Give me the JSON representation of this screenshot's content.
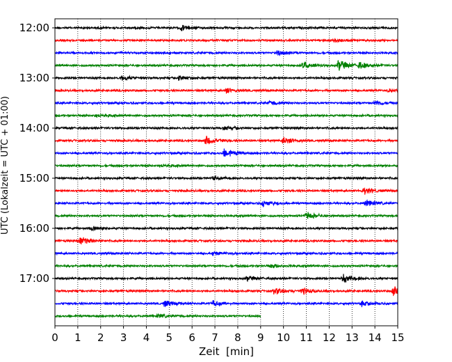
{
  "chart_data": {
    "type": "line",
    "title": "",
    "xlabel": "Zeit  [min]",
    "ylabel": "UTC (Lokalzeit = UTC + 01:00)",
    "xlim": [
      0,
      15
    ],
    "x_ticks": [
      0,
      1,
      2,
      3,
      4,
      5,
      6,
      7,
      8,
      9,
      10,
      11,
      12,
      13,
      14,
      15
    ],
    "grid": "vertical dotted",
    "row_interval_min": 15,
    "y_ticks": [
      "12:00",
      "13:00",
      "14:00",
      "15:00",
      "16:00",
      "17:00"
    ],
    "colors": [
      "#000000",
      "#ff0000",
      "#0000ff",
      "#008000"
    ],
    "traces": [
      {
        "start": "12:00",
        "color": "#000000",
        "end_min": 15,
        "events": [
          [
            5.5,
            0.5
          ]
        ]
      },
      {
        "start": "12:15",
        "color": "#ff0000",
        "end_min": 15,
        "events": [
          [
            12.2,
            0.35
          ]
        ]
      },
      {
        "start": "12:30",
        "color": "#0000ff",
        "end_min": 15,
        "events": [
          [
            9.7,
            0.45
          ]
        ]
      },
      {
        "start": "12:45",
        "color": "#008000",
        "end_min": 15,
        "events": [
          [
            10.8,
            0.7
          ],
          [
            12.4,
            1.0
          ],
          [
            13.3,
            0.55
          ]
        ]
      },
      {
        "start": "13:00",
        "color": "#000000",
        "end_min": 15,
        "events": [
          [
            2.9,
            0.4
          ],
          [
            5.4,
            0.45
          ]
        ]
      },
      {
        "start": "13:15",
        "color": "#ff0000",
        "end_min": 15,
        "events": [
          [
            7.5,
            0.4
          ],
          [
            14.6,
            0.3
          ]
        ]
      },
      {
        "start": "13:30",
        "color": "#0000ff",
        "end_min": 15,
        "events": [
          [
            9.4,
            0.35
          ],
          [
            14.0,
            0.45
          ]
        ]
      },
      {
        "start": "13:45",
        "color": "#008000",
        "end_min": 15,
        "events": [
          [
            1.8,
            0.3
          ]
        ]
      },
      {
        "start": "14:00",
        "color": "#000000",
        "end_min": 15,
        "events": [
          [
            7.4,
            0.35
          ]
        ]
      },
      {
        "start": "14:15",
        "color": "#ff0000",
        "end_min": 15,
        "events": [
          [
            6.6,
            0.8
          ],
          [
            10.0,
            0.6
          ]
        ]
      },
      {
        "start": "14:30",
        "color": "#0000ff",
        "end_min": 15,
        "events": [
          [
            7.4,
            0.9
          ]
        ]
      },
      {
        "start": "14:45",
        "color": "#008000",
        "end_min": 15,
        "events": [
          [
            4.6,
            0.25
          ]
        ]
      },
      {
        "start": "15:00",
        "color": "#000000",
        "end_min": 15,
        "events": [
          [
            6.9,
            0.3
          ]
        ]
      },
      {
        "start": "15:15",
        "color": "#ff0000",
        "end_min": 15,
        "events": [
          [
            13.5,
            0.55
          ]
        ]
      },
      {
        "start": "15:30",
        "color": "#0000ff",
        "end_min": 15,
        "events": [
          [
            9.1,
            0.55
          ],
          [
            13.6,
            0.55
          ]
        ]
      },
      {
        "start": "15:45",
        "color": "#008000",
        "end_min": 15,
        "events": [
          [
            11.0,
            0.7
          ]
        ]
      },
      {
        "start": "16:00",
        "color": "#000000",
        "end_min": 15,
        "events": [
          [
            1.6,
            0.35
          ]
        ]
      },
      {
        "start": "16:15",
        "color": "#ff0000",
        "end_min": 15,
        "events": [
          [
            1.1,
            0.8
          ]
        ]
      },
      {
        "start": "16:30",
        "color": "#0000ff",
        "end_min": 15,
        "events": [
          [
            6.9,
            0.3
          ]
        ]
      },
      {
        "start": "16:45",
        "color": "#008000",
        "end_min": 15,
        "events": [
          [
            9.4,
            0.4
          ]
        ]
      },
      {
        "start": "17:00",
        "color": "#000000",
        "end_min": 15,
        "events": [
          [
            8.4,
            0.4
          ],
          [
            12.6,
            0.75
          ]
        ]
      },
      {
        "start": "17:15",
        "color": "#ff0000",
        "end_min": 15,
        "events": [
          [
            9.6,
            0.55
          ],
          [
            10.8,
            0.6
          ],
          [
            14.8,
            0.85
          ]
        ]
      },
      {
        "start": "17:30",
        "color": "#0000ff",
        "end_min": 15,
        "events": [
          [
            4.8,
            0.55
          ],
          [
            6.9,
            0.5
          ],
          [
            13.4,
            0.45
          ]
        ]
      },
      {
        "start": "17:45",
        "color": "#008000",
        "end_min": 9,
        "events": [
          [
            4.5,
            0.3
          ]
        ]
      }
    ]
  }
}
